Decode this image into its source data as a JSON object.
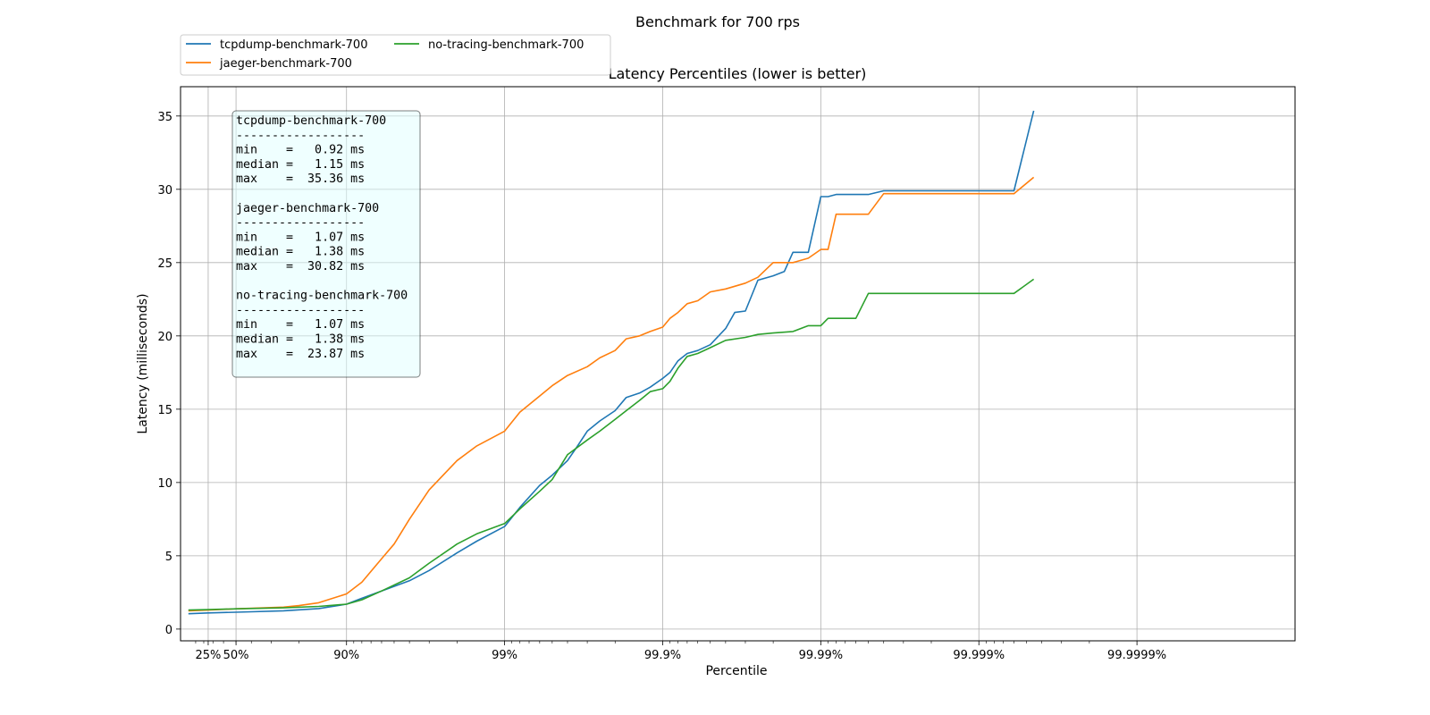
{
  "chart_data": {
    "type": "line",
    "title": "Benchmark for 700 rps",
    "subtitle": "Latency Percentiles (lower is better)",
    "xlabel": "Percentile",
    "ylabel": "Latency (milliseconds)",
    "x_scale": "inverse-log (nines)",
    "xlim": [
      0,
      99.99999
    ],
    "ylim": [
      -0.8,
      37
    ],
    "x_ticks": [
      {
        "value": 25,
        "label": "25%"
      },
      {
        "value": 50,
        "label": "50%"
      },
      {
        "value": 90,
        "label": "90%"
      },
      {
        "value": 99,
        "label": "99%"
      },
      {
        "value": 99.9,
        "label": "99.9%"
      },
      {
        "value": 99.99,
        "label": "99.99%"
      },
      {
        "value": 99.999,
        "label": "99.999%"
      },
      {
        "value": 99.9999,
        "label": "99.9999%"
      }
    ],
    "y_ticks": [
      0,
      5,
      10,
      15,
      20,
      25,
      30,
      35
    ],
    "grid": true,
    "legend_placement": "above-left",
    "colors": {
      "tcpdump": "#1f77b4",
      "jaeger": "#ff7f0e",
      "no_tracing": "#2ca02c"
    },
    "series": [
      {
        "name": "tcpdump-benchmark-700",
        "color": "#1f77b4",
        "x": [
          0,
          25,
          50,
          75,
          85,
          90,
          92,
          94,
          96,
          97,
          98,
          98.5,
          99,
          99.2,
          99.4,
          99.5,
          99.6,
          99.65,
          99.7,
          99.75,
          99.8,
          99.83,
          99.86,
          99.88,
          99.9,
          99.91,
          99.92,
          99.93,
          99.94,
          99.95,
          99.96,
          99.965,
          99.97,
          99.975,
          99.98,
          99.983,
          99.985,
          99.988,
          99.99,
          99.991,
          99.992,
          99.993,
          99.994,
          99.995,
          99.996,
          99.997,
          99.998,
          99.9985,
          99.999,
          99.9992,
          99.9994,
          99.99955
        ],
        "y": [
          1.05,
          1.1,
          1.15,
          1.25,
          1.4,
          1.7,
          2.1,
          2.6,
          3.3,
          4.0,
          5.2,
          6.0,
          7.0,
          8.3,
          9.8,
          10.5,
          11.5,
          12.4,
          13.5,
          14.2,
          14.9,
          15.8,
          16.1,
          16.5,
          17.1,
          17.5,
          18.3,
          18.8,
          19.0,
          19.4,
          20.5,
          21.6,
          21.7,
          23.8,
          24.1,
          24.4,
          25.7,
          25.7,
          29.5,
          29.5,
          29.65,
          29.65,
          29.65,
          29.65,
          29.9,
          29.9,
          29.9,
          29.9,
          29.9,
          29.9,
          29.9,
          35.36
        ]
      },
      {
        "name": "jaeger-benchmark-700",
        "color": "#ff7f0e",
        "x": [
          0,
          25,
          50,
          75,
          80,
          85,
          90,
          92,
          94,
          95,
          96,
          97,
          98,
          98.5,
          99,
          99.2,
          99.4,
          99.5,
          99.6,
          99.7,
          99.75,
          99.8,
          99.83,
          99.86,
          99.88,
          99.9,
          99.91,
          99.92,
          99.93,
          99.94,
          99.95,
          99.96,
          99.97,
          99.975,
          99.98,
          99.983,
          99.985,
          99.988,
          99.99,
          99.991,
          99.992,
          99.993,
          99.994,
          99.995,
          99.996,
          99.997,
          99.998,
          99.9985,
          99.999,
          99.9992,
          99.9994,
          99.99955
        ],
        "y": [
          1.25,
          1.3,
          1.38,
          1.5,
          1.6,
          1.8,
          2.4,
          3.2,
          4.8,
          5.8,
          7.5,
          9.5,
          11.5,
          12.5,
          13.5,
          14.8,
          15.9,
          16.6,
          17.3,
          17.9,
          18.5,
          19.0,
          19.8,
          20.0,
          20.3,
          20.6,
          21.2,
          21.6,
          22.2,
          22.4,
          23.0,
          23.2,
          23.6,
          24.0,
          25.0,
          25.0,
          25.0,
          25.3,
          25.9,
          25.9,
          28.3,
          28.3,
          28.3,
          28.3,
          29.7,
          29.7,
          29.7,
          29.7,
          29.7,
          29.7,
          29.7,
          30.82
        ]
      },
      {
        "name": "no-tracing-benchmark-700",
        "color": "#2ca02c",
        "x": [
          0,
          25,
          50,
          75,
          85,
          90,
          92,
          94,
          96,
          97,
          98,
          98.5,
          99,
          99.2,
          99.4,
          99.5,
          99.6,
          99.7,
          99.75,
          99.8,
          99.83,
          99.86,
          99.88,
          99.9,
          99.91,
          99.92,
          99.93,
          99.94,
          99.95,
          99.96,
          99.97,
          99.975,
          99.98,
          99.985,
          99.988,
          99.99,
          99.991,
          99.992,
          99.993,
          99.994,
          99.995,
          99.996,
          99.997,
          99.998,
          99.9985,
          99.999,
          99.9992,
          99.9994,
          99.99955
        ],
        "y": [
          1.3,
          1.33,
          1.38,
          1.45,
          1.55,
          1.7,
          2.0,
          2.6,
          3.5,
          4.5,
          5.8,
          6.5,
          7.2,
          8.2,
          9.4,
          10.2,
          11.9,
          12.9,
          13.5,
          14.3,
          14.9,
          15.6,
          16.2,
          16.4,
          16.9,
          17.8,
          18.6,
          18.8,
          19.2,
          19.7,
          19.9,
          20.1,
          20.2,
          20.3,
          20.7,
          20.7,
          21.2,
          21.2,
          21.2,
          21.2,
          22.9,
          22.9,
          22.9,
          22.9,
          22.9,
          22.9,
          22.9,
          22.9,
          23.87
        ]
      }
    ],
    "stats_box": [
      {
        "name": "tcpdump-benchmark-700",
        "separator": "------------------",
        "lines": [
          "min    =   0.92 ms",
          "median =   1.15 ms",
          "max    =  35.36 ms"
        ]
      },
      {
        "name": "jaeger-benchmark-700",
        "separator": "------------------",
        "lines": [
          "min    =   1.07 ms",
          "median =   1.38 ms",
          "max    =  30.82 ms"
        ]
      },
      {
        "name": "no-tracing-benchmark-700",
        "separator": "------------------",
        "lines": [
          "min    =   1.07 ms",
          "median =   1.38 ms",
          "max    =  23.87 ms"
        ]
      }
    ]
  }
}
